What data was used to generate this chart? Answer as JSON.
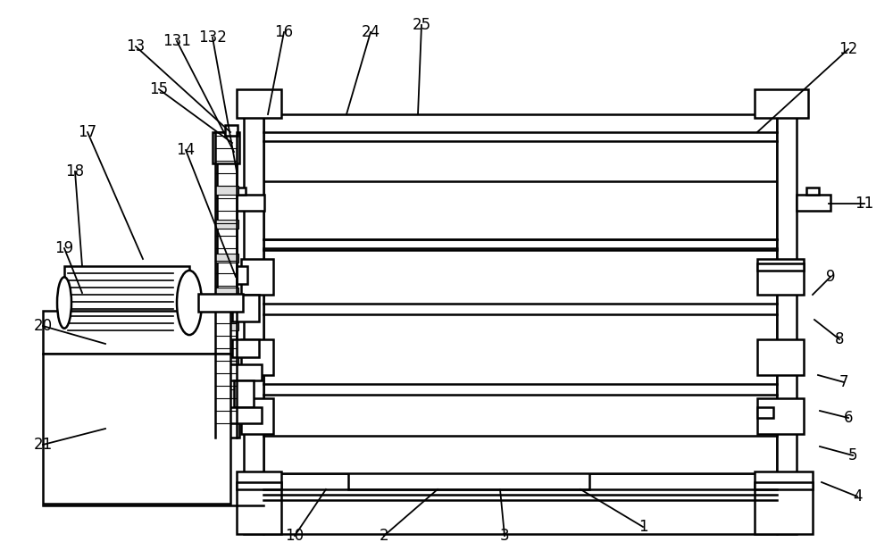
{
  "bg": "#ffffff",
  "lc": "#000000",
  "lw": 1.8,
  "fw": 10.0,
  "fh": 6.26,
  "annotations": [
    [
      "1",
      720,
      590,
      650,
      548
    ],
    [
      "2",
      430,
      600,
      490,
      548
    ],
    [
      "3",
      565,
      600,
      560,
      548
    ],
    [
      "4",
      960,
      556,
      920,
      540
    ],
    [
      "5",
      955,
      510,
      918,
      500
    ],
    [
      "6",
      950,
      468,
      918,
      460
    ],
    [
      "7",
      945,
      428,
      916,
      420
    ],
    [
      "8",
      940,
      380,
      912,
      358
    ],
    [
      "9",
      930,
      310,
      910,
      330
    ],
    [
      "10",
      330,
      600,
      365,
      548
    ],
    [
      "11",
      968,
      228,
      928,
      228
    ],
    [
      "12",
      950,
      55,
      848,
      148
    ],
    [
      "13",
      152,
      52,
      258,
      148
    ],
    [
      "131",
      198,
      46,
      262,
      170
    ],
    [
      "132",
      238,
      42,
      265,
      192
    ],
    [
      "14",
      208,
      168,
      264,
      310
    ],
    [
      "15",
      178,
      100,
      260,
      160
    ],
    [
      "16",
      318,
      36,
      300,
      128
    ],
    [
      "17",
      98,
      148,
      160,
      290
    ],
    [
      "18",
      84,
      192,
      92,
      298
    ],
    [
      "19",
      72,
      278,
      92,
      328
    ],
    [
      "20",
      48,
      365,
      118,
      385
    ],
    [
      "21",
      48,
      498,
      118,
      480
    ],
    [
      "24",
      415,
      36,
      388,
      128
    ],
    [
      "25",
      472,
      28,
      468,
      128
    ]
  ]
}
